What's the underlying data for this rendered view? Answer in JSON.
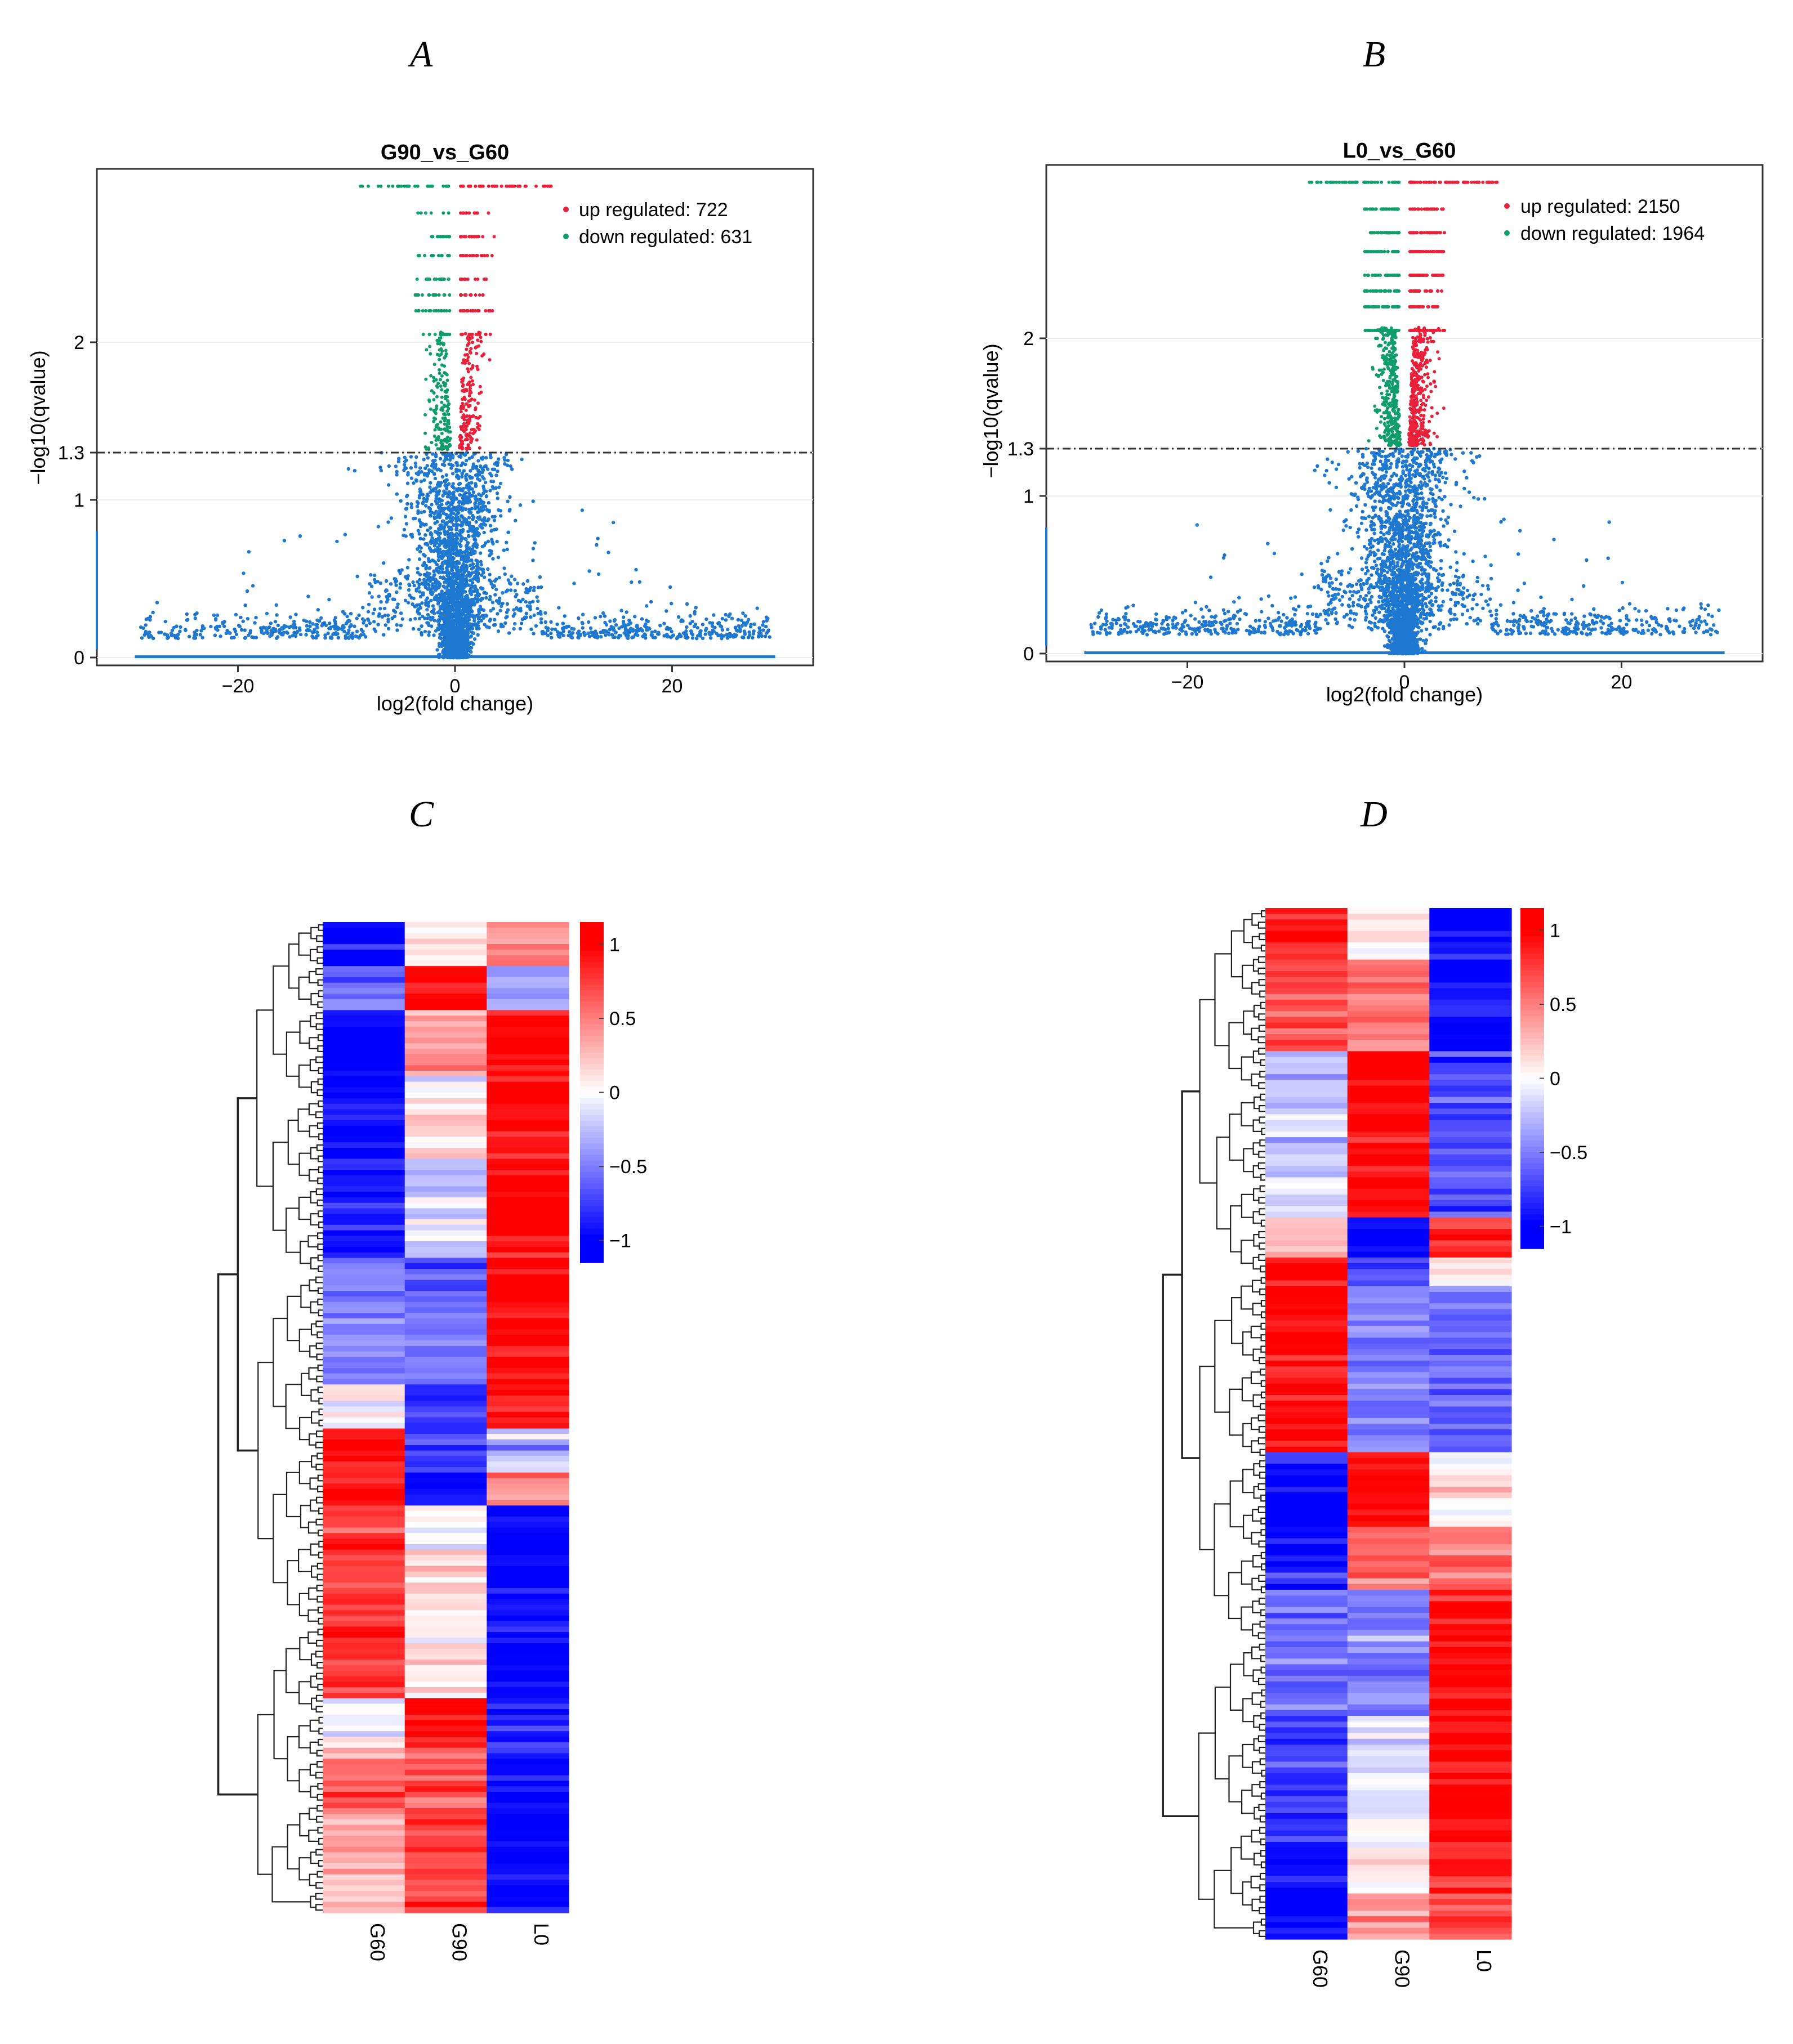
{
  "panel_labels": [
    "A",
    "B",
    "C",
    "D"
  ],
  "colors": {
    "up": "#e8203a",
    "down": "#0f9d6a",
    "ns": "#1f78d0",
    "heat_high": "#ff0000",
    "heat_mid": "#ffffff",
    "heat_low": "#0000ff",
    "threshold": "#333333"
  },
  "chart_data": [
    {
      "type": "scatter",
      "panel": "A",
      "title": "G90_vs_G60",
      "xlabel": "log2(fold change)",
      "ylabel": "−log10(qvalue)",
      "xlim": [
        -33,
        33
      ],
      "ylim": [
        -0.05,
        3.1
      ],
      "xticks": [
        -20,
        0,
        20
      ],
      "xtick_labels": [
        "−20",
        "0",
        "20"
      ],
      "yticks": [
        0,
        1,
        1.3,
        2
      ],
      "ytick_labels": [
        "0",
        "1",
        "1.3",
        "2"
      ],
      "threshold": 1.3,
      "legend": [
        "up regulated: 722",
        "down regulated: 631"
      ],
      "legend_position": "top-right",
      "series": [
        {
          "name": "up regulated",
          "count": 722,
          "color_key": "up"
        },
        {
          "name": "down regulated",
          "count": 631,
          "color_key": "down"
        },
        {
          "name": "not significant",
          "color_key": "ns"
        }
      ]
    },
    {
      "type": "scatter",
      "panel": "B",
      "title": "L0_vs_G60",
      "xlabel": "log2(fold change)",
      "ylabel": "−log10(qvalue)",
      "xlim": [
        -33,
        33
      ],
      "ylim": [
        -0.05,
        3.1
      ],
      "xticks": [
        -20,
        0,
        20
      ],
      "xtick_labels": [
        "−20",
        "0",
        "20"
      ],
      "yticks": [
        0,
        1,
        1.3,
        2
      ],
      "ytick_labels": [
        "0",
        "1",
        "1.3",
        "2"
      ],
      "threshold": 1.3,
      "legend": [
        "up regulated: 2150",
        "down regulated: 1964"
      ],
      "legend_position": "top-right",
      "series": [
        {
          "name": "up regulated",
          "count": 2150,
          "color_key": "up"
        },
        {
          "name": "down regulated",
          "count": 1964,
          "color_key": "down"
        },
        {
          "name": "not significant",
          "color_key": "ns"
        }
      ]
    },
    {
      "type": "heatmap",
      "panel": "C",
      "columns": [
        "G60",
        "G90",
        "L0"
      ],
      "colorbar_ticks": [
        1,
        0.5,
        0,
        -0.5,
        -1
      ],
      "colorbar_labels": [
        "1",
        "0.5",
        "0",
        "−0.5",
        "−1"
      ],
      "clusters": [
        {
          "weight": 5,
          "values": [
            -1,
            0.15,
            0.4
          ]
        },
        {
          "weight": 5,
          "values": [
            -0.6,
            0.95,
            -0.4
          ]
        },
        {
          "weight": 8,
          "values": [
            -1,
            0.35,
            0.95
          ]
        },
        {
          "weight": 10,
          "values": [
            -1,
            0.1,
            1
          ]
        },
        {
          "weight": 12,
          "values": [
            -0.9,
            -0.2,
            1
          ]
        },
        {
          "weight": 15,
          "values": [
            -0.5,
            -0.55,
            1
          ]
        },
        {
          "weight": 5,
          "values": [
            0.05,
            -0.85,
            0.95
          ]
        },
        {
          "weight": 5,
          "values": [
            1,
            -0.7,
            -0.3
          ]
        },
        {
          "weight": 4,
          "values": [
            0.9,
            -0.9,
            0.5
          ]
        },
        {
          "weight": 23,
          "values": [
            0.8,
            0.15,
            -1
          ]
        },
        {
          "weight": 6,
          "values": [
            0,
            0.95,
            -0.85
          ]
        },
        {
          "weight": 8,
          "values": [
            0.55,
            0.6,
            -1
          ]
        },
        {
          "weight": 12,
          "values": [
            0.3,
            0.75,
            -1
          ]
        }
      ]
    },
    {
      "type": "heatmap",
      "panel": "D",
      "columns": [
        "G60",
        "G90",
        "L0"
      ],
      "colorbar_ticks": [
        1,
        0.5,
        0,
        -0.5,
        -1
      ],
      "colorbar_labels": [
        "1",
        "0.5",
        "0",
        "−0.5",
        "−1"
      ],
      "clusters": [
        {
          "weight": 5,
          "values": [
            0.9,
            0.1,
            -1
          ]
        },
        {
          "weight": 9,
          "values": [
            0.65,
            0.55,
            -1
          ]
        },
        {
          "weight": 16,
          "values": [
            -0.2,
            1,
            -0.75
          ]
        },
        {
          "weight": 4,
          "values": [
            0.3,
            -1,
            0.8
          ]
        },
        {
          "weight": 3,
          "values": [
            1,
            -0.75,
            0.05
          ]
        },
        {
          "weight": 16,
          "values": [
            1,
            -0.5,
            -0.6
          ]
        },
        {
          "weight": 7,
          "values": [
            -1,
            0.95,
            0.05
          ]
        },
        {
          "weight": 6,
          "values": [
            -0.95,
            0.6,
            0.55
          ]
        },
        {
          "weight": 12,
          "values": [
            -0.55,
            -0.55,
            1
          ]
        },
        {
          "weight": 12,
          "values": [
            -0.8,
            -0.1,
            1
          ]
        },
        {
          "weight": 5,
          "values": [
            -1,
            0,
            0.85
          ]
        },
        {
          "weight": 5,
          "values": [
            -1,
            0.45,
            0.75
          ]
        }
      ]
    }
  ]
}
